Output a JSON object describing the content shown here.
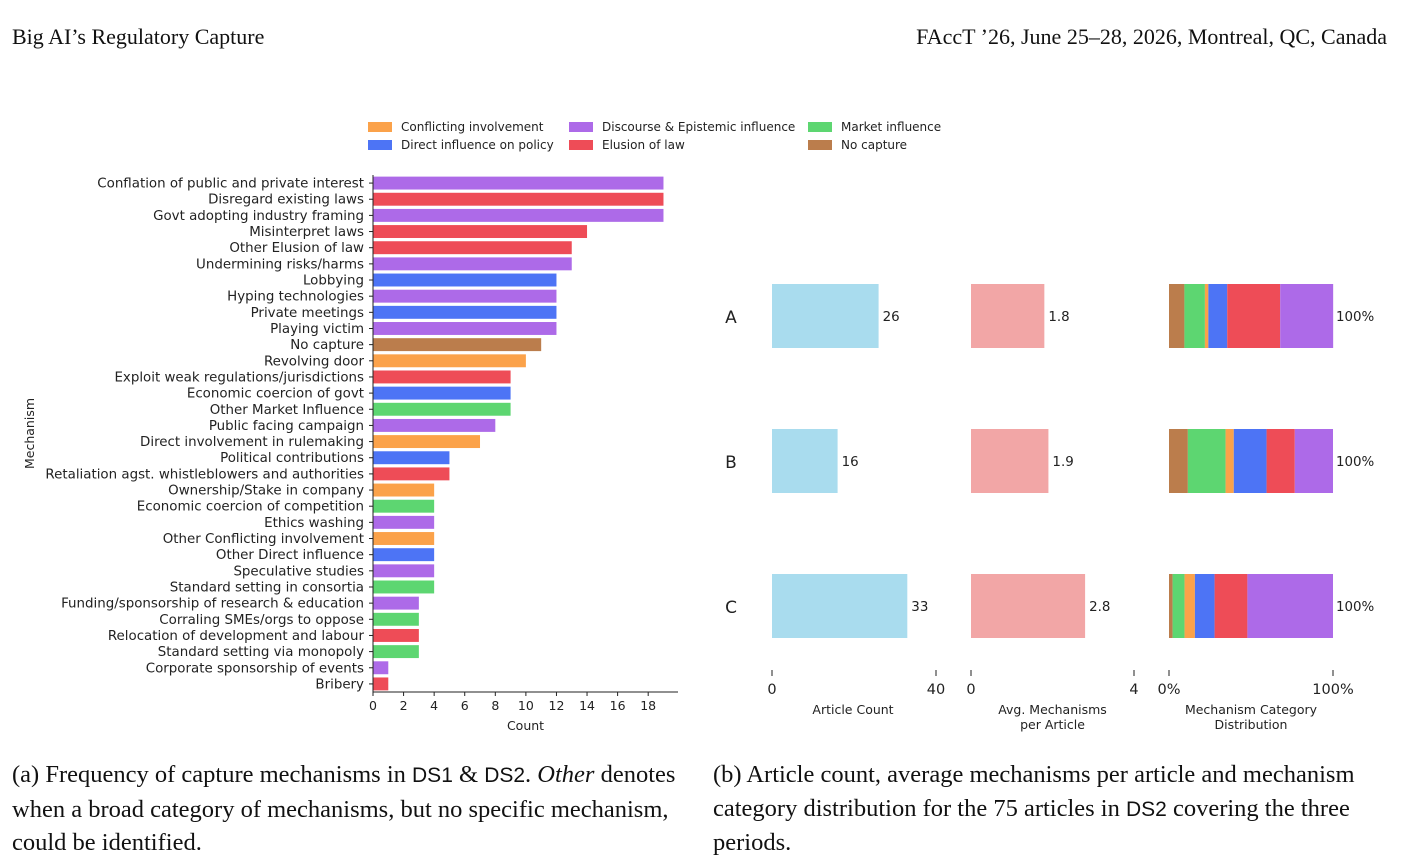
{
  "header": {
    "left": "Big AI’s Regulatory Capture",
    "right": "FAccT ’26, June 25–28, 2026, Montreal, QC, Canada"
  },
  "colors": {
    "Conflicting involvement": "#fba24a",
    "Direct influence on policy": "#4d74f5",
    "Discourse & Epistemic influence": "#ad6ae8",
    "Elusion of law": "#ee4c57",
    "Market influence": "#5dd671",
    "No capture": "#bb7d4c",
    "article_count": "#a9dcee",
    "avg_mechanisms": "#f2a6a6"
  },
  "chart_data": [
    {
      "type": "bar",
      "orientation": "horizontal",
      "ylabel": "Mechanism",
      "xlabel": "Count",
      "xlim": [
        0,
        19
      ],
      "xticks": [
        "0",
        "2",
        "4",
        "6",
        "8",
        "10",
        "12",
        "14",
        "16",
        "18"
      ],
      "legend": {
        "placement": "top",
        "entries": [
          "Conflicting involvement",
          "Direct influence on policy",
          "Discourse & Epistemic influence",
          "Elusion of law",
          "Market influence",
          "No capture"
        ]
      },
      "categories": [
        "Conflation of public and private interest",
        "Disregard existing laws",
        "Govt adopting industry framing",
        "Misinterpret laws",
        "Other Elusion of law",
        "Undermining risks/harms",
        "Lobbying",
        "Hyping technologies",
        "Private meetings",
        "Playing victim",
        "No capture",
        "Revolving door",
        "Exploit weak regulations/jurisdictions",
        "Economic coercion of govt",
        "Other Market Influence",
        "Public facing campaign",
        "Direct involvement in rulemaking",
        "Political contributions",
        "Retaliation agst. whistleblowers and authorities",
        "Ownership/Stake in company",
        "Economic coercion of competition",
        "Ethics washing",
        "Other Conflicting involvement",
        "Other Direct influence",
        "Speculative studies",
        "Standard setting in consortia",
        "Funding/sponsorship of research & education",
        "Corraling SMEs/orgs to oppose",
        "Relocation of development and labour",
        "Standard setting via monopoly",
        "Corporate sponsorship of events",
        "Bribery"
      ],
      "values": [
        19,
        19,
        19,
        14,
        13,
        13,
        12,
        12,
        12,
        12,
        11,
        10,
        9,
        9,
        9,
        8,
        7,
        5,
        5,
        4,
        4,
        4,
        4,
        4,
        4,
        4,
        3,
        3,
        3,
        3,
        1,
        1
      ],
      "groups": [
        "Discourse & Epistemic influence",
        "Elusion of law",
        "Discourse & Epistemic influence",
        "Elusion of law",
        "Elusion of law",
        "Discourse & Epistemic influence",
        "Direct influence on policy",
        "Discourse & Epistemic influence",
        "Direct influence on policy",
        "Discourse & Epistemic influence",
        "No capture",
        "Conflicting involvement",
        "Elusion of law",
        "Direct influence on policy",
        "Market influence",
        "Discourse & Epistemic influence",
        "Conflicting involvement",
        "Direct influence on policy",
        "Elusion of law",
        "Conflicting involvement",
        "Market influence",
        "Discourse & Epistemic influence",
        "Conflicting involvement",
        "Direct influence on policy",
        "Discourse & Epistemic influence",
        "Market influence",
        "Discourse & Epistemic influence",
        "Market influence",
        "Elusion of law",
        "Market influence",
        "Discourse & Epistemic influence",
        "Elusion of law"
      ]
    },
    {
      "type": "bar",
      "orientation": "horizontal",
      "periods": [
        "A",
        "B",
        "C"
      ],
      "panels": [
        {
          "key": "article_count",
          "xlabel": "Article Count",
          "xlim": [
            0,
            40
          ],
          "xticks": [
            "0",
            "40"
          ],
          "values": [
            26,
            16,
            33
          ],
          "labels": [
            "26",
            "16",
            "33"
          ]
        },
        {
          "key": "avg_mechanisms",
          "xlabel": "Avg. Mechanisms per Article",
          "xlabel_lines": [
            "Avg. Mechanisms",
            "per Article"
          ],
          "xlim": [
            0,
            4
          ],
          "xticks": [
            "0",
            "4"
          ],
          "values": [
            1.8,
            1.9,
            2.8
          ],
          "labels": [
            "1.8",
            "1.9",
            "2.8"
          ]
        },
        {
          "key": "distribution",
          "type": "stacked-bar-100",
          "xlabel": "Mechanism Category Distribution",
          "xlabel_lines": [
            "Mechanism Category",
            "Distribution"
          ],
          "xticks": [
            "0%",
            "100%"
          ],
          "stack_order": [
            "No capture",
            "Market influence",
            "Conflicting involvement",
            "Direct influence on policy",
            "Elusion of law",
            "Discourse & Epistemic influence"
          ],
          "values": [
            [
              0.094,
              0.125,
              0.021,
              0.115,
              0.323,
              0.323
            ],
            [
              0.115,
              0.23,
              0.05,
              0.2,
              0.172,
              0.233
            ],
            [
              0.022,
              0.073,
              0.063,
              0.12,
              0.2,
              0.522
            ]
          ],
          "labels": [
            "100%",
            "100%",
            "100%"
          ]
        }
      ]
    }
  ],
  "captions": {
    "a": {
      "prefix": "(a) Frequency of capture mechanisms in ",
      "ds1": "DS1",
      "amp": " & ",
      "ds2": "DS2",
      "dot": ". ",
      "italic": "Other",
      "rest": " denotes when a broad category of mechanisms, but no specific mechanism, could be identified."
    },
    "b": {
      "prefix": "(b) Article count, average mechanisms per article and mechanism category distribution for the 75 articles in ",
      "ds2": "DS2",
      "rest": " covering the three periods."
    }
  }
}
